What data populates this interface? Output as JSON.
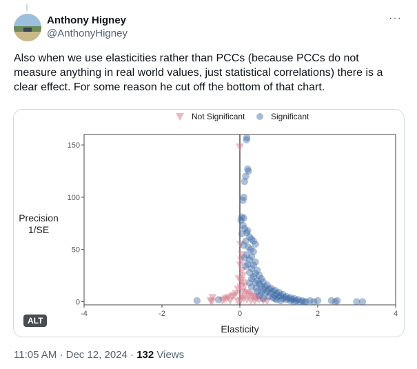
{
  "tweet": {
    "author_name": "Anthony Higney",
    "author_handle": "@AnthonyHigney",
    "more_label": "···",
    "text": "Also when we use elasticities rather than PCCs (because PCCs do not measure anything in real world values, just statistical correlations) there is a clear effect. For some reason he cut off the bottom of that chart.",
    "alt_badge": "ALT",
    "time": "11:05 AM",
    "separator": "·",
    "date": "Dec 12, 2024",
    "views_count": "132",
    "views_label": "Views"
  },
  "colors": {
    "significant": "#3b6aa5",
    "not_significant": "#d8808f",
    "text_secondary": "#536471"
  },
  "chart_data": {
    "type": "scatter",
    "xlabel": "Elasticity",
    "ylabel_line1": "Precision",
    "ylabel_line2": "1/SE",
    "xlim": [
      -4,
      4
    ],
    "ylim": [
      -3,
      160
    ],
    "xticks": [
      -4,
      -2,
      0,
      2,
      4
    ],
    "yticks": [
      0,
      50,
      100,
      150
    ],
    "legend_position": "top",
    "vline_x": 0,
    "series": [
      {
        "name": "Not Significant",
        "marker": "triangle-down",
        "points": [
          [
            0.0,
            148
          ],
          [
            0.02,
            55
          ],
          [
            0.05,
            45
          ],
          [
            0.03,
            40
          ],
          [
            0.01,
            35
          ],
          [
            0.06,
            30
          ],
          [
            0.08,
            25
          ],
          [
            -0.02,
            22
          ],
          [
            0.04,
            20
          ],
          [
            0.1,
            18
          ],
          [
            0.12,
            15
          ],
          [
            0.02,
            14
          ],
          [
            -0.05,
            12
          ],
          [
            0.07,
            10
          ],
          [
            0.15,
            9
          ],
          [
            0.2,
            8
          ],
          [
            -0.1,
            8
          ],
          [
            0.25,
            7
          ],
          [
            0.3,
            6
          ],
          [
            -0.15,
            6
          ],
          [
            0.05,
            5
          ],
          [
            0.35,
            5
          ],
          [
            -0.2,
            5
          ],
          [
            0.4,
            4
          ],
          [
            -0.3,
            4
          ],
          [
            0.1,
            3
          ],
          [
            0.45,
            3
          ],
          [
            -0.35,
            3
          ],
          [
            0.5,
            2
          ],
          [
            -0.4,
            2
          ],
          [
            0.18,
            2
          ],
          [
            0.28,
            1
          ],
          [
            -0.25,
            1
          ],
          [
            0.6,
            1
          ],
          [
            -0.45,
            1
          ],
          [
            0.02,
            1
          ],
          [
            0.38,
            0.5
          ],
          [
            -0.05,
            0.5
          ],
          [
            0.7,
            0.5
          ],
          [
            -0.7,
            4
          ],
          [
            -0.75,
            1
          ],
          [
            -0.72,
            0
          ]
        ]
      },
      {
        "name": "Significant",
        "marker": "circle",
        "points": [
          [
            0.18,
            157
          ],
          [
            0.17,
            155
          ],
          [
            0.2,
            127
          ],
          [
            0.22,
            125
          ],
          [
            0.15,
            120
          ],
          [
            0.12,
            115
          ],
          [
            0.1,
            100
          ],
          [
            0.08,
            97
          ],
          [
            0.05,
            81
          ],
          [
            0.1,
            80
          ],
          [
            0.03,
            78
          ],
          [
            0.08,
            73
          ],
          [
            0.12,
            70
          ],
          [
            0.2,
            68
          ],
          [
            0.18,
            66
          ],
          [
            0.05,
            65
          ],
          [
            0.25,
            62
          ],
          [
            0.3,
            60
          ],
          [
            0.15,
            58
          ],
          [
            0.35,
            58
          ],
          [
            0.4,
            55
          ],
          [
            0.1,
            54
          ],
          [
            0.22,
            52
          ],
          [
            0.28,
            50
          ],
          [
            0.35,
            48
          ],
          [
            0.18,
            45
          ],
          [
            0.3,
            43
          ],
          [
            0.12,
            42
          ],
          [
            0.25,
            40
          ],
          [
            0.4,
            38
          ],
          [
            0.2,
            36
          ],
          [
            0.35,
            35
          ],
          [
            0.15,
            34
          ],
          [
            0.3,
            32
          ],
          [
            0.45,
            30
          ],
          [
            0.25,
            28
          ],
          [
            0.4,
            27
          ],
          [
            0.5,
            25
          ],
          [
            0.35,
            24
          ],
          [
            0.3,
            22
          ],
          [
            0.55,
            22
          ],
          [
            0.45,
            20
          ],
          [
            0.6,
            19
          ],
          [
            0.4,
            18
          ],
          [
            0.5,
            17
          ],
          [
            0.7,
            16
          ],
          [
            0.55,
            15
          ],
          [
            0.65,
            14
          ],
          [
            0.8,
            13
          ],
          [
            0.6,
            12
          ],
          [
            0.75,
            12
          ],
          [
            0.9,
            11
          ],
          [
            0.7,
            10
          ],
          [
            0.85,
            10
          ],
          [
            1.0,
            9
          ],
          [
            0.8,
            8
          ],
          [
            0.95,
            8
          ],
          [
            1.1,
            7
          ],
          [
            0.9,
            6
          ],
          [
            1.05,
            6
          ],
          [
            1.2,
            5
          ],
          [
            1.0,
            5
          ],
          [
            1.15,
            4
          ],
          [
            1.3,
            4
          ],
          [
            1.1,
            3
          ],
          [
            1.25,
            3
          ],
          [
            1.4,
            3
          ],
          [
            1.2,
            2
          ],
          [
            1.35,
            2
          ],
          [
            1.5,
            2
          ],
          [
            1.3,
            1
          ],
          [
            1.45,
            1
          ],
          [
            1.6,
            1
          ],
          [
            1.4,
            0
          ],
          [
            1.55,
            0
          ],
          [
            1.7,
            0
          ],
          [
            1.8,
            1
          ],
          [
            1.65,
            0
          ],
          [
            1.9,
            0
          ],
          [
            2.0,
            1
          ],
          [
            2.35,
            1
          ],
          [
            2.5,
            1
          ],
          [
            2.45,
            0
          ],
          [
            3.0,
            0
          ],
          [
            3.15,
            0
          ],
          [
            -1.1,
            1
          ],
          [
            -0.55,
            2
          ],
          [
            0.5,
            6
          ],
          [
            0.65,
            8
          ],
          [
            0.85,
            4
          ],
          [
            0.95,
            2
          ],
          [
            1.05,
            1
          ],
          [
            0.6,
            3
          ],
          [
            0.75,
            5
          ],
          [
            0.9,
            3
          ],
          [
            0.45,
            10
          ],
          [
            0.55,
            9
          ],
          [
            0.3,
            14
          ],
          [
            0.42,
            13
          ],
          [
            0.25,
            18
          ]
        ]
      }
    ]
  }
}
